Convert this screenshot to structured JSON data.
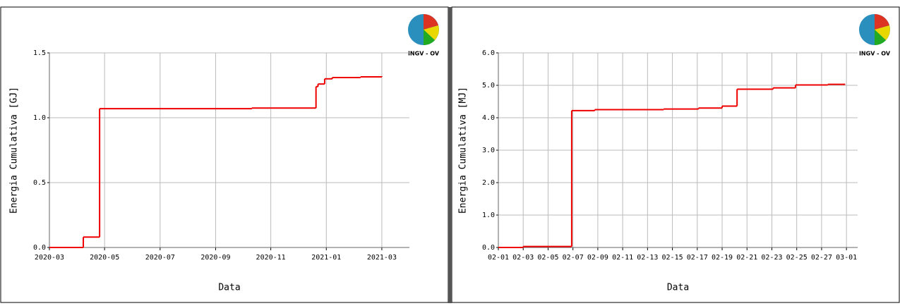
{
  "logos": [
    "INGV - OV",
    "INGV - OV"
  ],
  "chart_data": [
    {
      "type": "step",
      "xlabel": "Data",
      "ylabel": "Energia Cumulativa [GJ]",
      "color": "#ee0000",
      "grid": true,
      "xlim": [
        2020.167,
        2021.25
      ],
      "ylim": [
        0,
        1.5
      ],
      "xticks": [
        {
          "value": 2020.167,
          "label": "2020-03"
        },
        {
          "value": 2020.333,
          "label": "2020-05"
        },
        {
          "value": 2020.5,
          "label": "2020-07"
        },
        {
          "value": 2020.667,
          "label": "2020-09"
        },
        {
          "value": 2020.833,
          "label": "2020-11"
        },
        {
          "value": 2021.0,
          "label": "2021-01"
        },
        {
          "value": 2021.167,
          "label": "2021-03"
        }
      ],
      "yticks": [
        {
          "value": 0,
          "label": "0.0"
        },
        0.5,
        {
          "value": 1,
          "label": "1.0"
        },
        1.5
      ],
      "x": [
        2020.167,
        2020.269,
        2020.318,
        2020.776,
        2020.969,
        2020.975,
        2020.995,
        2021.018,
        2021.103,
        2021.167
      ],
      "values": [
        0,
        0.08,
        1.07,
        1.075,
        1.24,
        1.26,
        1.3,
        1.31,
        1.315,
        1.32
      ]
    },
    {
      "type": "step",
      "xlabel": "Data",
      "ylabel": "Energia Cumulativa [MJ]",
      "color": "#ee0000",
      "grid": true,
      "xlim": [
        1,
        29.9
      ],
      "ylim": [
        0,
        6
      ],
      "xticks": [
        {
          "value": 1,
          "label": "02-01"
        },
        {
          "value": 3,
          "label": "02-03"
        },
        {
          "value": 5,
          "label": "02-05"
        },
        {
          "value": 7,
          "label": "02-07"
        },
        {
          "value": 9,
          "label": "02-09"
        },
        {
          "value": 11,
          "label": "02-11"
        },
        {
          "value": 13,
          "label": "02-13"
        },
        {
          "value": 15,
          "label": "02-15"
        },
        {
          "value": 17,
          "label": "02-17"
        },
        {
          "value": 19,
          "label": "02-19"
        },
        {
          "value": 21,
          "label": "02-21"
        },
        {
          "value": 23,
          "label": "02-23"
        },
        {
          "value": 25,
          "label": "02-25"
        },
        {
          "value": 27,
          "label": "02-27"
        },
        {
          "value": 29,
          "label": "03-01"
        }
      ],
      "yticks": [
        {
          "value": 0,
          "label": "0.0"
        },
        {
          "value": 1,
          "label": "1.0"
        },
        {
          "value": 2,
          "label": "2.0"
        },
        {
          "value": 3,
          "label": "3.0"
        },
        {
          "value": 4,
          "label": "4.0"
        },
        {
          "value": 5,
          "label": "5.0"
        },
        {
          "value": 6,
          "label": "6.0"
        }
      ],
      "x": [
        1,
        3.0,
        6.9,
        8.76,
        14.3,
        17.1,
        19.0,
        20.2,
        23.1,
        24.9,
        27.5,
        28.9
      ],
      "values": [
        0,
        0.03,
        4.22,
        4.25,
        4.27,
        4.3,
        4.36,
        4.88,
        4.92,
        5.01,
        5.03,
        5.03
      ]
    }
  ]
}
